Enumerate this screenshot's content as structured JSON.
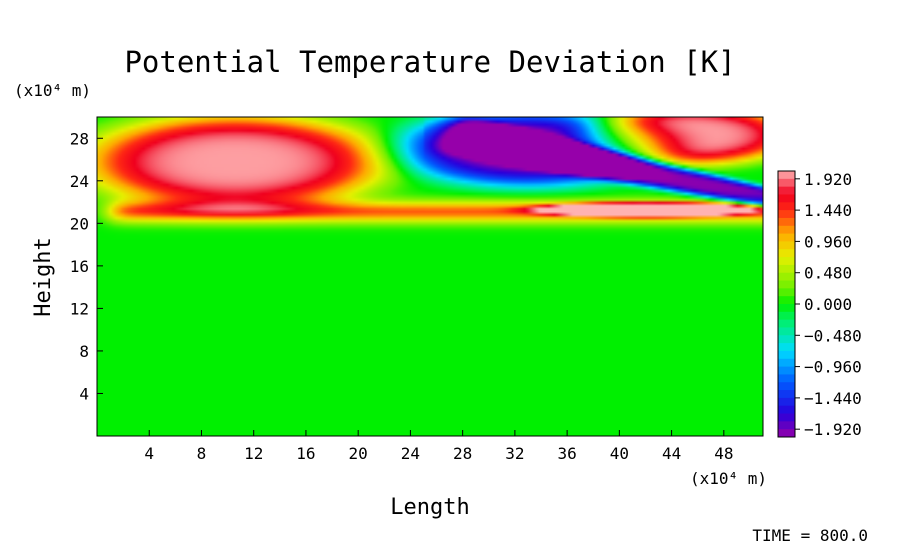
{
  "chart_data": {
    "type": "heatmap",
    "title": "Potential Temperature Deviation [K]",
    "xlabel": "Length",
    "ylabel": "Height",
    "x_unit": "(x10⁴ m)",
    "y_unit": "(x10⁴ m)",
    "xlim": [
      0,
      51
    ],
    "ylim": [
      0,
      30
    ],
    "x_ticks": [
      4,
      8,
      12,
      16,
      20,
      24,
      28,
      32,
      36,
      40,
      44,
      48
    ],
    "y_ticks": [
      4,
      8,
      12,
      16,
      20,
      24,
      28
    ],
    "colorbar": {
      "min": -2.04,
      "max": 2.04,
      "tick_values": [
        1.92,
        1.44,
        0.96,
        0.48,
        0.0,
        -0.48,
        -0.96,
        -1.44,
        -1.92
      ],
      "tick_labels": [
        "1.920",
        "1.440",
        "0.960",
        "0.480",
        "0.000",
        "−0.480",
        "−0.960",
        "−1.440",
        "−1.920"
      ]
    },
    "background_value": 0.0,
    "features": [
      {
        "kind": "warm-band",
        "value": 1.3,
        "x_range": [
          0,
          51
        ],
        "y_range": [
          20.2,
          22.0
        ]
      },
      {
        "kind": "warm-cell",
        "value": 2.0,
        "center": [
          10.6,
          25.8
        ],
        "radius": [
          11.5,
          4.4
        ]
      },
      {
        "kind": "cold-cell",
        "value": -2.0,
        "center": [
          33,
          27
        ],
        "radius": [
          10,
          3.5
        ]
      },
      {
        "kind": "cold-tongue",
        "value": -2.0,
        "x_range": [
          28,
          51
        ],
        "y_from": [
          26.5,
          21.5
        ],
        "y_to": [
          30,
          23.5
        ]
      },
      {
        "kind": "warm-lens",
        "value": 2.0,
        "center": [
          42,
          21.3
        ],
        "radius": [
          8.5,
          0.7
        ]
      },
      {
        "kind": "warm-cell",
        "value": 2.0,
        "center": [
          45.5,
          28.3
        ],
        "radius": [
          8,
          2.8
        ]
      }
    ],
    "annotation": "TIME = 800.0"
  }
}
